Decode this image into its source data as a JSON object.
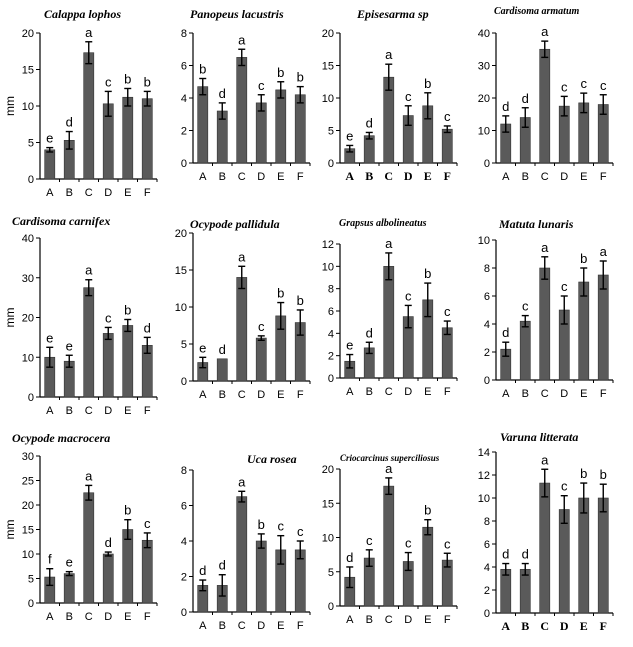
{
  "chart_data": [
    {
      "type": "bar",
      "title": "Calappa lophos",
      "ylabel": "mm",
      "categories": [
        "A",
        "B",
        "C",
        "D",
        "E",
        "F"
      ],
      "values": [
        4,
        5.3,
        17.3,
        10.3,
        11.2,
        11
      ],
      "errors": [
        0.3,
        1.2,
        1.5,
        1.7,
        1.2,
        1
      ],
      "letters": [
        "e",
        "d",
        "a",
        "c",
        "b",
        "b"
      ],
      "ylim": [
        0,
        20
      ],
      "yticks": [
        0,
        5,
        10,
        15,
        20
      ]
    },
    {
      "type": "bar",
      "title": "Panopeus lacustris",
      "ylabel": "",
      "categories": [
        "A",
        "B",
        "C",
        "D",
        "E",
        "F"
      ],
      "values": [
        4.7,
        3.2,
        6.5,
        3.7,
        4.5,
        4.2
      ],
      "errors": [
        0.5,
        0.5,
        0.5,
        0.5,
        0.5,
        0.5
      ],
      "letters": [
        "b",
        "d",
        "a",
        "c",
        "b",
        "b"
      ],
      "ylim": [
        0,
        8
      ],
      "yticks": [
        0,
        2,
        4,
        6,
        8
      ]
    },
    {
      "type": "bar",
      "title": "Episesarma sp",
      "ylabel": "",
      "categories": [
        "A",
        "B",
        "C",
        "D",
        "E",
        "F"
      ],
      "values": [
        2.2,
        4.2,
        13.2,
        7.3,
        8.8,
        5.2
      ],
      "errors": [
        0.5,
        0.5,
        2,
        1.5,
        2,
        0.5
      ],
      "letters": [
        "e",
        "d",
        "a",
        "c",
        "b",
        "c"
      ],
      "ylim": [
        0,
        20
      ],
      "yticks": [
        0,
        5,
        10,
        15,
        20
      ]
    },
    {
      "type": "bar",
      "title": "Cardisoma armatum",
      "ylabel": "",
      "categories": [
        "A",
        "B",
        "C",
        "D",
        "E",
        "F"
      ],
      "values": [
        12,
        14,
        35,
        17.5,
        18.5,
        18
      ],
      "errors": [
        2.5,
        3,
        2.5,
        3,
        3,
        3
      ],
      "letters": [
        "d",
        "d",
        "a",
        "c",
        "c",
        "c"
      ],
      "ylim": [
        0,
        40
      ],
      "yticks": [
        0,
        10,
        20,
        30,
        40
      ]
    },
    {
      "type": "bar",
      "title": "Cardisoma carnifex",
      "ylabel": "mm",
      "categories": [
        "A",
        "B",
        "C",
        "D",
        "E",
        "F"
      ],
      "values": [
        10,
        9,
        27.5,
        16,
        18,
        13
      ],
      "errors": [
        2.5,
        1.5,
        2,
        1.5,
        1.5,
        2
      ],
      "letters": [
        "e",
        "e",
        "a",
        "c",
        "b",
        "d"
      ],
      "ylim": [
        0,
        40
      ],
      "yticks": [
        0,
        10,
        20,
        30,
        40
      ]
    },
    {
      "type": "bar",
      "title": "Ocypode pallidula",
      "ylabel": "",
      "categories": [
        "A",
        "B",
        "C",
        "D",
        "E",
        "F"
      ],
      "values": [
        2.5,
        3,
        14,
        5.8,
        8.8,
        7.9
      ],
      "errors": [
        0.7,
        0,
        1.5,
        0.3,
        1.8,
        1.7
      ],
      "letters": [
        "e",
        "d",
        "a",
        "c",
        "b",
        "b"
      ],
      "ylim": [
        0,
        20
      ],
      "yticks": [
        0,
        5,
        10,
        15,
        20
      ]
    },
    {
      "type": "bar",
      "title": "Grapsus albolineatus",
      "ylabel": "",
      "categories": [
        "A",
        "B",
        "C",
        "D",
        "E",
        "F"
      ],
      "values": [
        1.5,
        2.7,
        10,
        5.5,
        7,
        4.5
      ],
      "errors": [
        0.6,
        0.5,
        1.2,
        1,
        1.5,
        0.6
      ],
      "letters": [
        "e",
        "d",
        "a",
        "c",
        "b",
        "c"
      ],
      "ylim": [
        0,
        12
      ],
      "yticks": [
        0,
        2,
        4,
        6,
        8,
        10,
        12
      ]
    },
    {
      "type": "bar",
      "title": "Matuta lunaris",
      "ylabel": "",
      "categories": [
        "A",
        "B",
        "C",
        "D",
        "E",
        "F"
      ],
      "values": [
        2.2,
        4.2,
        8,
        5,
        7,
        7.5
      ],
      "errors": [
        0.5,
        0.4,
        0.8,
        1,
        1,
        1
      ],
      "letters": [
        "d",
        "c",
        "a",
        "c",
        "b",
        "a"
      ],
      "ylim": [
        0,
        10
      ],
      "yticks": [
        0,
        2,
        4,
        6,
        8,
        10
      ]
    },
    {
      "type": "bar",
      "title": "Ocypode macrocera",
      "ylabel": "mm",
      "categories": [
        "A",
        "B",
        "C",
        "D",
        "E",
        "F"
      ],
      "values": [
        5.3,
        6,
        22.5,
        10,
        15,
        12.8
      ],
      "errors": [
        1.7,
        0.4,
        1.5,
        0.4,
        2,
        1.5
      ],
      "letters": [
        "f",
        "e",
        "a",
        "d",
        "b",
        "c"
      ],
      "ylim": [
        0,
        30
      ],
      "yticks": [
        0,
        5,
        10,
        15,
        20,
        25,
        30
      ]
    },
    {
      "type": "bar",
      "title": "Uca rosea",
      "ylabel": "",
      "categories": [
        "A",
        "B",
        "C",
        "D",
        "E",
        "F"
      ],
      "values": [
        1.5,
        1.5,
        6.5,
        4,
        3.5,
        3.5
      ],
      "errors": [
        0.3,
        0.6,
        0.3,
        0.4,
        0.8,
        0.5
      ],
      "letters": [
        "d",
        "d",
        "a",
        "b",
        "c",
        "c"
      ],
      "ylim": [
        0,
        8
      ],
      "yticks": [
        0,
        2,
        4,
        6,
        8
      ]
    },
    {
      "type": "bar",
      "title": "Criocarcinus superciliosus",
      "ylabel": "",
      "categories": [
        "A",
        "B",
        "C",
        "D",
        "E",
        "F"
      ],
      "values": [
        4.2,
        7,
        17.5,
        6.5,
        11.5,
        6.7
      ],
      "errors": [
        1.5,
        1.2,
        1.2,
        1.3,
        1.1,
        1
      ],
      "letters": [
        "d",
        "c",
        "a",
        "c",
        "b",
        "c"
      ],
      "ylim": [
        0,
        20
      ],
      "yticks": [
        0,
        5,
        10,
        15,
        20
      ]
    },
    {
      "type": "bar",
      "title": "Varuna litterata",
      "ylabel": "",
      "categories": [
        "A",
        "B",
        "C",
        "D",
        "E",
        "F"
      ],
      "values": [
        3.8,
        3.8,
        11.3,
        9,
        10,
        10
      ],
      "errors": [
        0.5,
        0.5,
        1.2,
        1.2,
        1.3,
        1.2
      ],
      "letters": [
        "d",
        "d",
        "a",
        "c",
        "b",
        "b"
      ],
      "ylim": [
        0,
        14
      ],
      "yticks": [
        0,
        2,
        4,
        6,
        8,
        10,
        12,
        14
      ]
    }
  ]
}
